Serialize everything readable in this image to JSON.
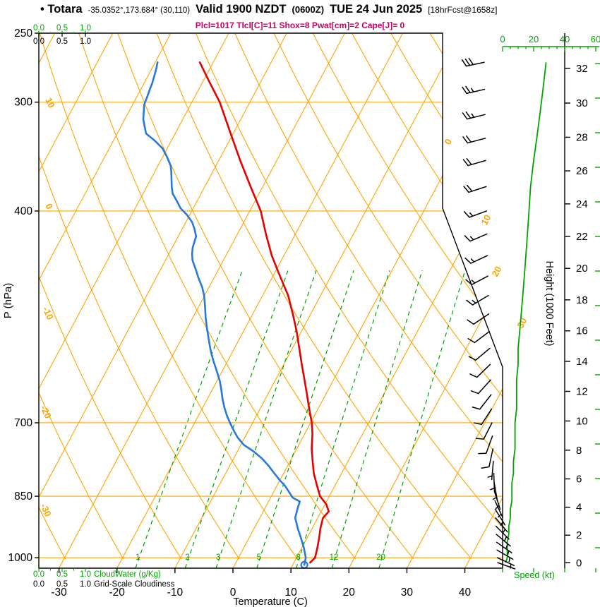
{
  "header": {
    "station_label": "• Totara",
    "coords": "-35.0352°,173.684° (30,110)",
    "valid_main": "Valid 1900 NZDT",
    "valid_zulu": "(0600Z)",
    "valid_date": "TUE 24 Jun 2025",
    "fcst_info": "[18hrFcst@1658z]",
    "params_line": "Plcl=1017 Tlcl[C]=11 Shox=8 Pwat[cm]=2 Cape[J]= 0"
  },
  "axes": {
    "pressure": {
      "title": "P (hPa)",
      "ticks": [
        250,
        300,
        400,
        700,
        850,
        1000
      ]
    },
    "temperature": {
      "title": "Temperature (C)",
      "ticks": [
        -30,
        -20,
        -10,
        0,
        10,
        20,
        30,
        40
      ]
    },
    "height": {
      "title": "Height (1000 Feet)",
      "ticks": [
        0,
        2,
        4,
        6,
        8,
        10,
        12,
        14,
        16,
        18,
        20,
        22,
        24,
        26,
        28,
        30,
        32
      ]
    },
    "speed": {
      "title": "Speed (kt)",
      "ticks": [
        0,
        20,
        40,
        60
      ]
    },
    "cloudwater": {
      "title": "CloudWater (g/Kg)",
      "ticks": [
        "0.0",
        "0.5",
        "1.0"
      ]
    },
    "cloudiness": {
      "title": "Grid-Scale Cloudiness",
      "ticks": [
        "0.0",
        "0.5",
        "1.0"
      ]
    }
  },
  "colors": {
    "grid_orange": "#ffa500",
    "green": "#00a400",
    "temp_red": "#e60000",
    "dew_blue": "#2979d9",
    "params_magenta": "#cc0066",
    "black": "#000000"
  },
  "chart_data": {
    "type": "line",
    "diagram": "skew-t log-p atmospheric sounding",
    "title": "Totara sounding valid 1900 NZDT TUE 24 Jun 2025",
    "pressure_range_hpa": [
      250,
      1030
    ],
    "isotherms_c": {
      "min": -80,
      "max": 40,
      "step": 10
    },
    "dry_adiabats_c": {
      "min": -40,
      "max": 120,
      "step": 10
    },
    "mixing_ratio_g_kg": [
      1,
      2,
      3,
      5,
      8,
      12,
      20
    ],
    "isotherm_edge_labels": [
      {
        "value": "0",
        "x": 637,
        "y": 206
      },
      {
        "value": "10",
        "x": 689,
        "y": 320
      },
      {
        "value": "20",
        "x": 704,
        "y": 393
      },
      {
        "value": "30",
        "x": 740,
        "y": 466
      }
    ],
    "dry_adiabat_edge_labels": [
      {
        "value": "10",
        "x": 64,
        "y": 141
      },
      {
        "value": "0",
        "x": 64,
        "y": 291
      },
      {
        "value": "-10",
        "x": 60,
        "y": 437
      },
      {
        "value": "-20",
        "x": 57,
        "y": 577
      },
      {
        "value": "-30",
        "x": 57,
        "y": 716
      }
    ],
    "series": [
      {
        "name": "temperature",
        "color_key": "temp_red",
        "points_p_t": [
          [
            1013,
            12.8
          ],
          [
            1000,
            13.2
          ],
          [
            975,
            12.7
          ],
          [
            950,
            12.1
          ],
          [
            925,
            11.4
          ],
          [
            900,
            10.9
          ],
          [
            885,
            11.3
          ],
          [
            868,
            10.2
          ],
          [
            850,
            8.4
          ],
          [
            825,
            6.8
          ],
          [
            800,
            5.2
          ],
          [
            775,
            3.9
          ],
          [
            750,
            2.6
          ],
          [
            720,
            1.3
          ],
          [
            700,
            0.2
          ],
          [
            675,
            -1.5
          ],
          [
            650,
            -3.2
          ],
          [
            625,
            -5.0
          ],
          [
            600,
            -6.9
          ],
          [
            575,
            -8.8
          ],
          [
            550,
            -10.8
          ],
          [
            525,
            -13.1
          ],
          [
            500,
            -15.6
          ],
          [
            475,
            -18.8
          ],
          [
            450,
            -22.1
          ],
          [
            425,
            -25.1
          ],
          [
            400,
            -28.1
          ],
          [
            375,
            -32.1
          ],
          [
            350,
            -36.3
          ],
          [
            325,
            -40.6
          ],
          [
            300,
            -45.2
          ],
          [
            285,
            -48.7
          ],
          [
            270,
            -52.3
          ]
        ]
      },
      {
        "name": "dewpoint",
        "color_key": "dew_blue",
        "points_p_t": [
          [
            1019,
            12.0
          ],
          [
            1000,
            11.6
          ],
          [
            975,
            10.4
          ],
          [
            950,
            9.0
          ],
          [
            925,
            7.5
          ],
          [
            900,
            6.1
          ],
          [
            875,
            5.6
          ],
          [
            862,
            5.4
          ],
          [
            853,
            3.8
          ],
          [
            840,
            2.6
          ],
          [
            827,
            1.4
          ],
          [
            815,
            0.0
          ],
          [
            800,
            -1.6
          ],
          [
            785,
            -3.2
          ],
          [
            770,
            -5.0
          ],
          [
            755,
            -7.2
          ],
          [
            742,
            -9.5
          ],
          [
            728,
            -11.2
          ],
          [
            715,
            -12.5
          ],
          [
            700,
            -13.9
          ],
          [
            688,
            -15.0
          ],
          [
            672,
            -16.3
          ],
          [
            657,
            -17.4
          ],
          [
            642,
            -18.4
          ],
          [
            627,
            -19.5
          ],
          [
            610,
            -21.0
          ],
          [
            593,
            -22.6
          ],
          [
            577,
            -24.0
          ],
          [
            561,
            -25.3
          ],
          [
            545,
            -26.6
          ],
          [
            530,
            -27.8
          ],
          [
            515,
            -28.9
          ],
          [
            501,
            -30.0
          ],
          [
            489,
            -31.2
          ],
          [
            478,
            -32.6
          ],
          [
            467,
            -33.9
          ],
          [
            456,
            -35.3
          ],
          [
            448,
            -36.0
          ],
          [
            440,
            -36.5
          ],
          [
            428,
            -36.9
          ],
          [
            420,
            -37.8
          ],
          [
            412,
            -38.9
          ],
          [
            404,
            -40.5
          ],
          [
            397,
            -42.2
          ],
          [
            389,
            -43.6
          ],
          [
            382,
            -44.9
          ],
          [
            375,
            -45.7
          ],
          [
            368,
            -46.4
          ],
          [
            361,
            -47.1
          ],
          [
            355,
            -47.8
          ],
          [
            347,
            -49.2
          ],
          [
            339,
            -50.8
          ],
          [
            332,
            -52.9
          ],
          [
            326,
            -55.0
          ],
          [
            320,
            -55.9
          ],
          [
            314,
            -56.8
          ],
          [
            308,
            -57.4
          ],
          [
            302,
            -58.0
          ],
          [
            296,
            -58.2
          ],
          [
            291,
            -58.4
          ],
          [
            285,
            -58.6
          ],
          [
            280,
            -58.9
          ],
          [
            275,
            -59.2
          ],
          [
            270,
            -59.6
          ]
        ]
      }
    ],
    "wind_barbs_p_kt_dir": [
      [
        270,
        28,
        258
      ],
      [
        290,
        26,
        257
      ],
      [
        310,
        24,
        256
      ],
      [
        330,
        22,
        255
      ],
      [
        350,
        20,
        254
      ],
      [
        375,
        18,
        252
      ],
      [
        400,
        17,
        250
      ],
      [
        425,
        16,
        247
      ],
      [
        450,
        15,
        245
      ],
      [
        475,
        14,
        242
      ],
      [
        500,
        13,
        239
      ],
      [
        525,
        12,
        236
      ],
      [
        550,
        11,
        233
      ],
      [
        575,
        10,
        230
      ],
      [
        600,
        10,
        226
      ],
      [
        625,
        9,
        222
      ],
      [
        650,
        9,
        218
      ],
      [
        675,
        9,
        213
      ],
      [
        700,
        8,
        207
      ],
      [
        725,
        8,
        200
      ],
      [
        750,
        8,
        192
      ],
      [
        775,
        7,
        185
      ],
      [
        800,
        7,
        178
      ],
      [
        820,
        6,
        170
      ],
      [
        840,
        6,
        162
      ],
      [
        860,
        6,
        155
      ],
      [
        880,
        5,
        148
      ],
      [
        900,
        5,
        140
      ],
      [
        920,
        4,
        135
      ],
      [
        940,
        4,
        130
      ],
      [
        960,
        3,
        125
      ],
      [
        980,
        3,
        120
      ],
      [
        1000,
        3,
        115
      ],
      [
        1013,
        2,
        110
      ]
    ]
  }
}
